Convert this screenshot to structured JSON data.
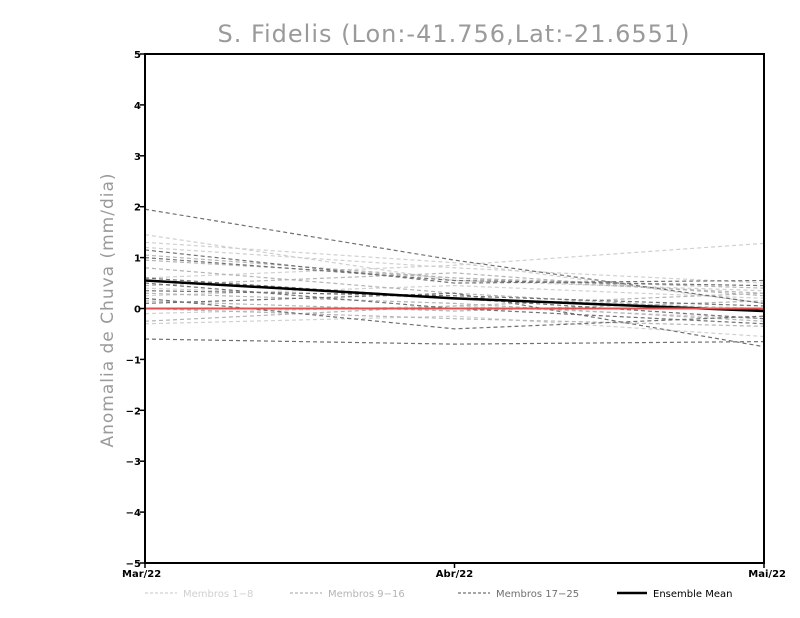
{
  "chart_data": {
    "type": "line",
    "title": "S. Fidelis (Lon:-41.756,Lat:-21.6551)",
    "ylabel": "Anomalia de Chuva (mm/dia)",
    "xlabel": "",
    "categories": [
      "Mar/22",
      "Abr/22",
      "Mai/22"
    ],
    "yticks": [
      "5",
      "4",
      "3",
      "2",
      "1",
      "0",
      "-1",
      "-2",
      "-3",
      "-4",
      "-5"
    ],
    "ylim": [
      -5,
      5
    ],
    "grid": false,
    "legend_position": "bottom",
    "colors": {
      "group1": "#d0d0d0",
      "group2": "#b4b4b4",
      "group3": "#707070",
      "mean": "#000000",
      "zero_line": "#e05050"
    },
    "legend": [
      {
        "label": "Membros 1-8",
        "group": "group1"
      },
      {
        "label": "Membros 9-16",
        "group": "group2"
      },
      {
        "label": "Membros 17-25",
        "group": "group3"
      },
      {
        "label": "Ensemble Mean",
        "group": "mean"
      }
    ],
    "series": [
      {
        "group": "group1",
        "values": [
          1.45,
          0.55,
          0.35
        ]
      },
      {
        "group": "group1",
        "values": [
          1.3,
          0.9,
          0.1
        ]
      },
      {
        "group": "group1",
        "values": [
          1.2,
          0.8,
          0.5
        ]
      },
      {
        "group": "group1",
        "values": [
          0.6,
          0.85,
          1.28
        ]
      },
      {
        "group": "group1",
        "values": [
          0.4,
          0.2,
          0.0
        ]
      },
      {
        "group": "group1",
        "values": [
          0.25,
          0.45,
          0.2
        ]
      },
      {
        "group": "group1",
        "values": [
          -0.1,
          0.05,
          -0.2
        ]
      },
      {
        "group": "group1",
        "values": [
          -0.3,
          -0.15,
          -0.55
        ]
      },
      {
        "group": "group2",
        "values": [
          1.05,
          0.6,
          0.3
        ]
      },
      {
        "group": "group2",
        "values": [
          0.95,
          0.6,
          0.4
        ]
      },
      {
        "group": "group2",
        "values": [
          0.8,
          0.3,
          -0.05
        ]
      },
      {
        "group": "group2",
        "values": [
          0.45,
          0.7,
          0.25
        ]
      },
      {
        "group": "group2",
        "values": [
          0.3,
          0.1,
          -0.25
        ]
      },
      {
        "group": "group2",
        "values": [
          0.15,
          -0.05,
          0.15
        ]
      },
      {
        "group": "group2",
        "values": [
          0.0,
          -0.2,
          -0.35
        ]
      },
      {
        "group": "group2",
        "values": [
          -0.25,
          0.05,
          0.3
        ]
      },
      {
        "group": "group3",
        "values": [
          1.95,
          0.95,
          0.1
        ]
      },
      {
        "group": "group3",
        "values": [
          1.15,
          0.5,
          0.55
        ]
      },
      {
        "group": "group3",
        "values": [
          1.0,
          0.55,
          0.45
        ]
      },
      {
        "group": "group3",
        "values": [
          0.6,
          0.2,
          -0.2
        ]
      },
      {
        "group": "group3",
        "values": [
          0.5,
          0.0,
          -0.3
        ]
      },
      {
        "group": "group3",
        "values": [
          0.35,
          0.25,
          0.05
        ]
      },
      {
        "group": "group3",
        "values": [
          0.2,
          -0.4,
          -0.15
        ]
      },
      {
        "group": "group3",
        "values": [
          0.1,
          0.3,
          -0.75
        ]
      },
      {
        "group": "group3",
        "values": [
          -0.6,
          -0.7,
          -0.65
        ]
      },
      {
        "group": "mean",
        "values": [
          0.55,
          0.2,
          -0.05
        ]
      },
      {
        "group": "zero_line",
        "values": [
          0.0,
          0.0,
          0.0
        ]
      }
    ]
  }
}
